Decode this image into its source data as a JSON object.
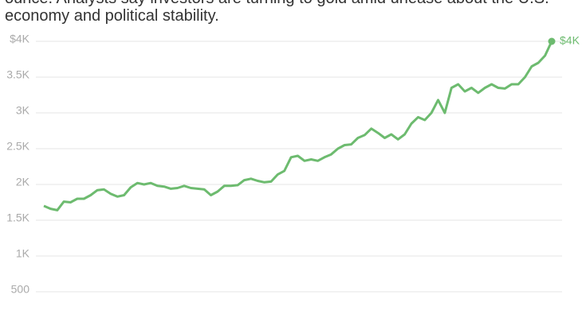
{
  "chart_data": {
    "type": "line",
    "subtitle_lines": [
      "ounce. Analysts say investors are turning to gold amid unease about the U.S.",
      "economy and political stability."
    ],
    "values": [
      1700,
      1660,
      1640,
      1760,
      1750,
      1800,
      1800,
      1850,
      1920,
      1930,
      1870,
      1830,
      1850,
      1960,
      2020,
      2000,
      2020,
      1980,
      1970,
      1940,
      1950,
      1980,
      1950,
      1940,
      1930,
      1850,
      1900,
      1980,
      1980,
      1990,
      2060,
      2080,
      2050,
      2030,
      2040,
      2140,
      2190,
      2380,
      2400,
      2330,
      2350,
      2330,
      2380,
      2420,
      2500,
      2550,
      2560,
      2650,
      2690,
      2780,
      2720,
      2650,
      2700,
      2630,
      2700,
      2850,
      2940,
      2900,
      3000,
      3180,
      3000,
      3350,
      3400,
      3300,
      3350,
      3280,
      3350,
      3400,
      3350,
      3340,
      3400,
      3400,
      3500,
      3650,
      3700,
      3800,
      4000
    ],
    "end_label": "$4K",
    "color": "#6dbb6f",
    "ylim": [
      500,
      4000
    ],
    "yticks": [
      500,
      {
        "value": 1000,
        "label": "1K"
      },
      {
        "value": 1500,
        "label": "1.5K"
      },
      {
        "value": 2000,
        "label": "2K"
      },
      {
        "value": 2500,
        "label": "2.5K"
      },
      {
        "value": 3000,
        "label": "3K"
      },
      {
        "value": 3500,
        "label": "3.5K"
      },
      {
        "value": 4000,
        "label": "$4K"
      }
    ],
    "grid": true
  }
}
